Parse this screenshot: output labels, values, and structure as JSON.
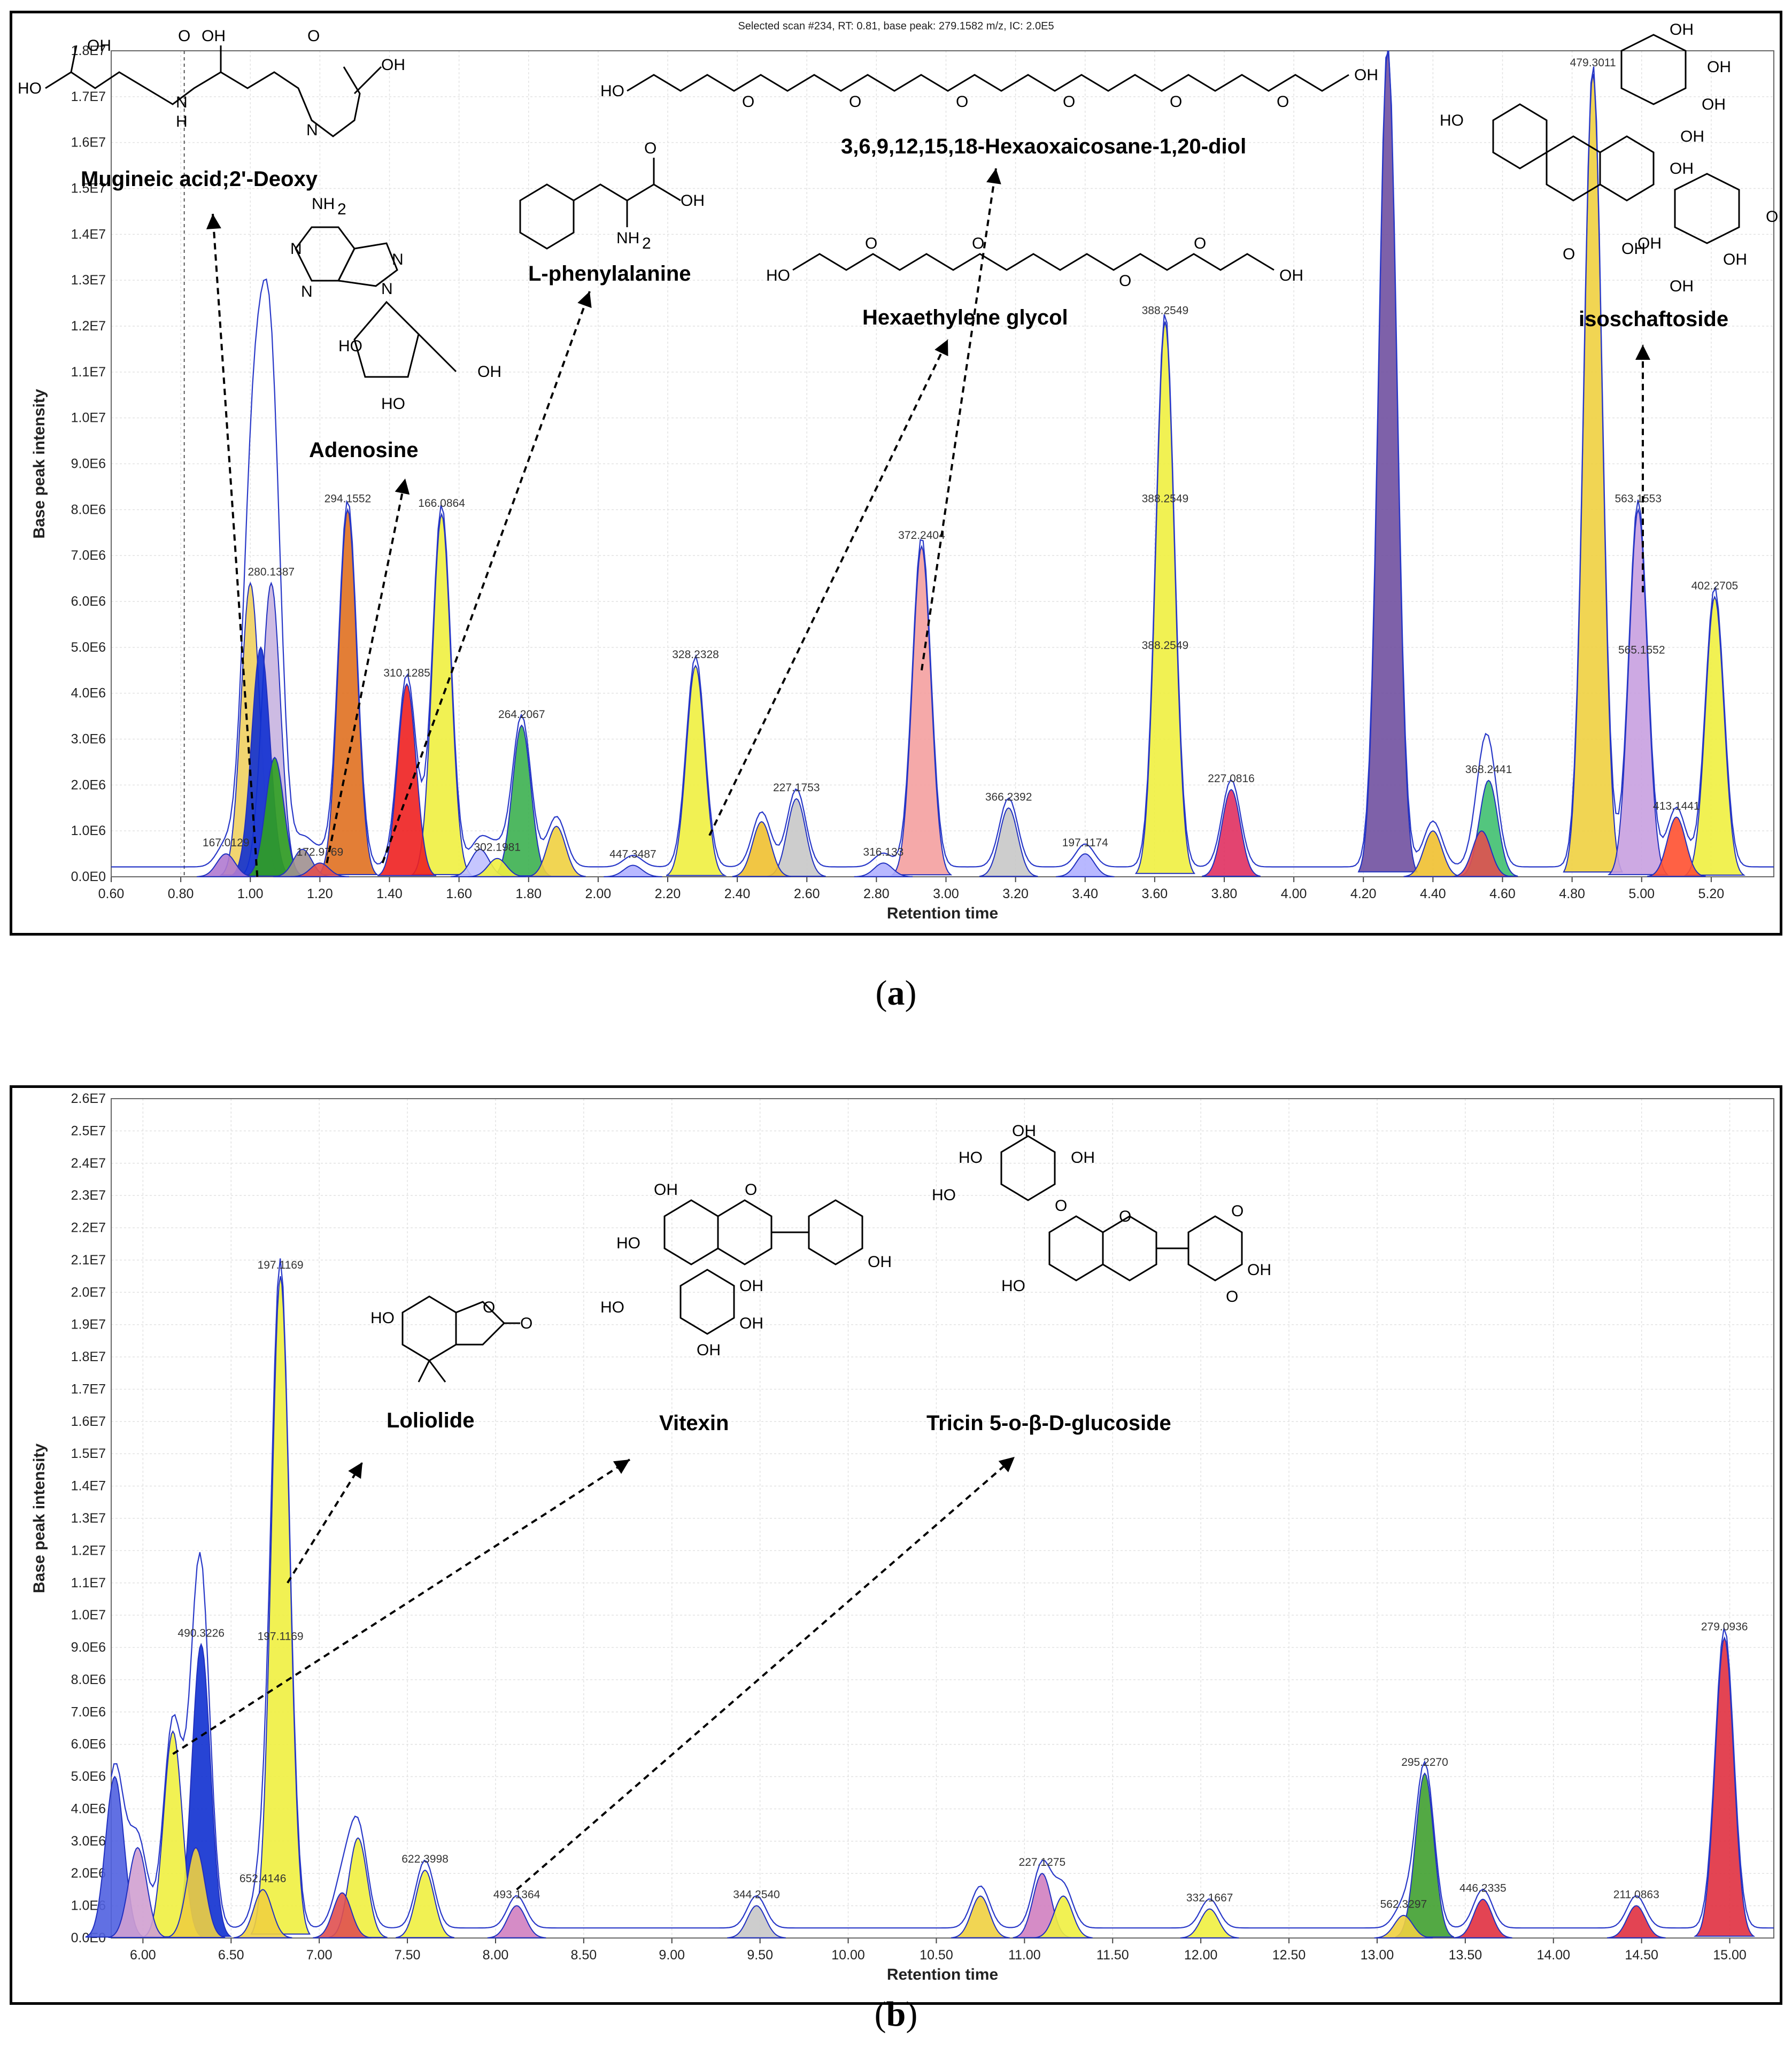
{
  "panel_a": {
    "header": "Selected scan #234, RT: 0.81, base peak: 279.1582 m/z, IC: 2.0E5",
    "caption_letter": "a",
    "compounds": [
      {
        "name": "Mugineic acid;2'-Deoxy",
        "rt": 1.0
      },
      {
        "name": "Adenosine",
        "rt": 1.28
      },
      {
        "name": "L-phenylalanine",
        "rt": 1.55
      },
      {
        "name": "Hexaethylene glycol",
        "rt": 2.28
      },
      {
        "name": "3,6,9,12,15,18-Hexaoxaicosane-1,20-diol",
        "rt": 2.93
      },
      {
        "name": "isoschaftoside",
        "rt": 4.98
      }
    ]
  },
  "panel_b": {
    "caption_letter": "b",
    "compounds": [
      {
        "name": "Loliolide",
        "rt": 6.78
      },
      {
        "name": "Vitexin",
        "rt": 6.17
      },
      {
        "name": "Tricin 5-o-β-D-glucoside",
        "rt": 8.12
      }
    ]
  },
  "chart_data": [
    {
      "type": "area",
      "title": "Selected scan #234, RT: 0.81, base peak: 279.1582 m/z, IC: 2.0E5",
      "xlabel": "Retention time",
      "ylabel": "Base peak intensity",
      "xlim": [
        0.6,
        5.38
      ],
      "ylim": [
        0,
        18000000
      ],
      "xticks": [
        "0.60",
        "0.80",
        "1.00",
        "1.20",
        "1.40",
        "1.60",
        "1.80",
        "2.00",
        "2.20",
        "2.40",
        "2.60",
        "2.80",
        "3.00",
        "3.20",
        "3.40",
        "3.60",
        "3.80",
        "4.00",
        "4.20",
        "4.40",
        "4.60",
        "4.80",
        "5.00",
        "5.20"
      ],
      "yticks": [
        "0.0E0",
        "1.0E6",
        "2.0E6",
        "3.0E6",
        "4.0E6",
        "5.0E6",
        "6.0E6",
        "7.0E6",
        "8.0E6",
        "9.0E6",
        "1.0E7",
        "1.1E7",
        "1.2E7",
        "1.3E7",
        "1.4E7",
        "1.5E7",
        "1.6E7",
        "1.7E7",
        "1.8E7"
      ],
      "grid": true,
      "selected_scan_rt": 0.81,
      "peaks": [
        {
          "rt": 0.93,
          "value": 500000,
          "label": "167.0129",
          "color": "#b07ad0"
        },
        {
          "rt": 1.0,
          "value": 6400000,
          "label": "",
          "color": "#f0d060"
        },
        {
          "rt": 1.06,
          "value": 6400000,
          "label": "280.1387",
          "color": "#c8b4e0"
        },
        {
          "rt": 1.03,
          "value": 5000000,
          "label": "",
          "color": "#1030d0"
        },
        {
          "rt": 1.07,
          "value": 2600000,
          "label": "",
          "color": "#30a020"
        },
        {
          "rt": 1.15,
          "value": 600000,
          "label": "",
          "color": "#a09090"
        },
        {
          "rt": 1.2,
          "value": 300000,
          "label": "172.9769",
          "color": "#e05050"
        },
        {
          "rt": 1.28,
          "value": 8000000,
          "label": "294.1552",
          "color": "#e07020"
        },
        {
          "rt": 1.45,
          "value": 4200000,
          "label": "310.1285",
          "color": "#ee2020"
        },
        {
          "rt": 1.55,
          "value": 7900000,
          "label": "166.0864",
          "color": "#f0f040"
        },
        {
          "rt": 1.66,
          "value": 600000,
          "label": "",
          "color": "#c0c0ff"
        },
        {
          "rt": 1.71,
          "value": 400000,
          "label": "302.1981",
          "color": "#f0f040"
        },
        {
          "rt": 1.78,
          "value": 3300000,
          "label": "264.2067",
          "color": "#3cb050"
        },
        {
          "rt": 1.88,
          "value": 1100000,
          "label": "",
          "color": "#f0d040"
        },
        {
          "rt": 2.1,
          "value": 250000,
          "label": "447.3487",
          "color": "#b0b0ff"
        },
        {
          "rt": 2.28,
          "value": 4600000,
          "label": "328.2328",
          "color": "#f0f040"
        },
        {
          "rt": 2.47,
          "value": 1200000,
          "label": "",
          "color": "#f0c030"
        },
        {
          "rt": 2.57,
          "value": 1700000,
          "label": "227.1753",
          "color": "#c8c8c8"
        },
        {
          "rt": 2.82,
          "value": 300000,
          "label": "316.133",
          "color": "#b0b0ff"
        },
        {
          "rt": 2.93,
          "value": 7200000,
          "label": "372.2404",
          "color": "#f4a0a0"
        },
        {
          "rt": 3.18,
          "value": 1500000,
          "label": "366.2392",
          "color": "#c8c8c8"
        },
        {
          "rt": 3.4,
          "value": 500000,
          "label": "197.1174",
          "color": "#b0b0ff"
        },
        {
          "rt": 3.63,
          "value": 12100000,
          "label": "388.2549",
          "color": "#f0f040"
        },
        {
          "rt": 3.82,
          "value": 1900000,
          "label": "227.0816",
          "color": "#e03060"
        },
        {
          "rt": 4.27,
          "value": 18000000,
          "label": "",
          "color": "#7050a0"
        },
        {
          "rt": 4.4,
          "value": 1000000,
          "label": "",
          "color": "#f0c030"
        },
        {
          "rt": 4.54,
          "value": 1000000,
          "label": "",
          "color": "#e05050"
        },
        {
          "rt": 4.56,
          "value": 2100000,
          "label": "368.2441",
          "color": "#40c070"
        },
        {
          "rt": 4.86,
          "value": 17500000,
          "label": "479.3011",
          "color": "#f0d040"
        },
        {
          "rt": 4.99,
          "value": 8000000,
          "label": "563.1553",
          "color": "#c8a0e0"
        },
        {
          "rt": 5.1,
          "value": 1300000,
          "label": "413.1441",
          "color": "#ff5030"
        },
        {
          "rt": 5.21,
          "value": 6100000,
          "label": "402.2705",
          "color": "#f0f040"
        }
      ],
      "extra_labels": [
        {
          "rt": 3.63,
          "value": 8000000,
          "label": "388.2549"
        },
        {
          "rt": 3.63,
          "value": 4800000,
          "label": "388.2549"
        },
        {
          "rt": 5.0,
          "value": 4700000,
          "label": "565.1552"
        }
      ]
    },
    {
      "type": "area",
      "xlabel": "Retention time",
      "ylabel": "Base peak intensity",
      "xlim": [
        5.82,
        15.25
      ],
      "ylim": [
        0,
        26000000
      ],
      "xticks": [
        "6.00",
        "6.50",
        "7.00",
        "7.50",
        "8.00",
        "8.50",
        "9.00",
        "9.50",
        "10.00",
        "10.50",
        "11.00",
        "11.50",
        "12.00",
        "12.50",
        "13.00",
        "13.50",
        "14.00",
        "14.50",
        "15.00"
      ],
      "yticks": [
        "0.0E0",
        "1.0E6",
        "2.0E6",
        "3.0E6",
        "4.0E6",
        "5.0E6",
        "6.0E6",
        "7.0E6",
        "8.0E6",
        "9.0E6",
        "1.0E7",
        "1.1E7",
        "1.2E7",
        "1.3E7",
        "1.4E7",
        "1.5E7",
        "1.6E7",
        "1.7E7",
        "1.8E7",
        "1.9E7",
        "2.0E7",
        "2.1E7",
        "2.2E7",
        "2.3E7",
        "2.4E7",
        "2.5E7",
        "2.6E7"
      ],
      "grid": true,
      "peaks": [
        {
          "rt": 5.84,
          "value": 5000000,
          "label": "",
          "color": "#5060e0"
        },
        {
          "rt": 5.97,
          "value": 2800000,
          "label": "",
          "color": "#d0a0d0"
        },
        {
          "rt": 6.17,
          "value": 6400000,
          "label": "",
          "color": "#f0f040"
        },
        {
          "rt": 6.33,
          "value": 9100000,
          "label": "490.3226",
          "color": "#1030d0"
        },
        {
          "rt": 6.3,
          "value": 2800000,
          "label": "",
          "color": "#f0d040"
        },
        {
          "rt": 6.68,
          "value": 1500000,
          "label": "652.4146",
          "color": "#f0d040"
        },
        {
          "rt": 6.78,
          "value": 20500000,
          "label": "197.1169",
          "color": "#f0f040"
        },
        {
          "rt": 7.13,
          "value": 1400000,
          "label": "",
          "color": "#e05050"
        },
        {
          "rt": 7.22,
          "value": 3100000,
          "label": "",
          "color": "#f0f040"
        },
        {
          "rt": 7.6,
          "value": 2100000,
          "label": "622.3998",
          "color": "#f0f040"
        },
        {
          "rt": 8.12,
          "value": 1000000,
          "label": "493.1364",
          "color": "#d080c0"
        },
        {
          "rt": 9.48,
          "value": 1000000,
          "label": "344.2540",
          "color": "#c8c8c8"
        },
        {
          "rt": 10.75,
          "value": 1300000,
          "label": "",
          "color": "#f0d040"
        },
        {
          "rt": 11.1,
          "value": 2000000,
          "label": "227.1275",
          "color": "#d080c0"
        },
        {
          "rt": 11.22,
          "value": 1300000,
          "label": "",
          "color": "#f0f040"
        },
        {
          "rt": 12.05,
          "value": 900000,
          "label": "332.1667",
          "color": "#f0f040"
        },
        {
          "rt": 13.15,
          "value": 700000,
          "label": "562.3297",
          "color": "#f0d040"
        },
        {
          "rt": 13.27,
          "value": 5100000,
          "label": "295.2270",
          "color": "#40a030"
        },
        {
          "rt": 13.6,
          "value": 1200000,
          "label": "446.2335",
          "color": "#e03040"
        },
        {
          "rt": 14.47,
          "value": 1000000,
          "label": "211.0863",
          "color": "#e03040"
        },
        {
          "rt": 14.97,
          "value": 9300000,
          "label": "279.0936",
          "color": "#e03040"
        }
      ],
      "extra_labels": [
        {
          "rt": 6.78,
          "value": 9000000,
          "label": "197.1169"
        }
      ]
    }
  ]
}
